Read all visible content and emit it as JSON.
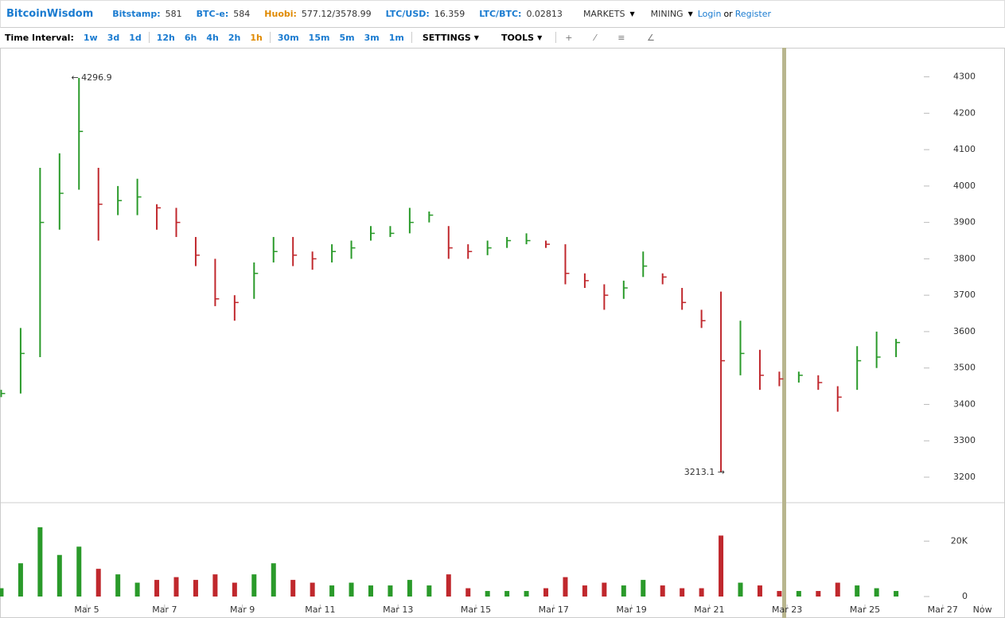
{
  "header": {
    "logo": "BitcoinWisdom",
    "tickers": [
      {
        "label": "Bitstamp:",
        "value": "581"
      },
      {
        "label": "BTC-e:",
        "value": "584"
      },
      {
        "label": "Huobi:",
        "value": "577.12/3578.99"
      },
      {
        "label": "LTC/USD:",
        "value": "16.359"
      },
      {
        "label": "LTC/BTC:",
        "value": "0.02813"
      }
    ],
    "menus": [
      "MARKETS",
      "MINING"
    ],
    "login": "Login",
    "or": "or",
    "register": "Register"
  },
  "toolbar": {
    "label": "Time Interval:",
    "intervals": [
      "1w",
      "3d",
      "1d",
      "12h",
      "6h",
      "4h",
      "2h",
      "1h",
      "30m",
      "15m",
      "5m",
      "3m",
      "1m"
    ],
    "active": "1h",
    "settings": "SETTINGS",
    "tools": "TOOLS"
  },
  "chart_data": {
    "type": "ohlc",
    "x": [
      2.8,
      3.3,
      3.8,
      4.3,
      4.8,
      5.3,
      5.8,
      6.3,
      6.8,
      7.3,
      7.8,
      8.3,
      8.8,
      9.3,
      9.8,
      10.3,
      10.8,
      11.3,
      11.8,
      12.3,
      12.8,
      13.3,
      13.8,
      14.3,
      14.8,
      15.3,
      15.8,
      16.3,
      16.8,
      17.3,
      17.8,
      18.3,
      18.8,
      19.3,
      19.8,
      20.3,
      20.8,
      21.3,
      21.8,
      22.3,
      22.8,
      23.3,
      23.8,
      24.3,
      24.8,
      25.3,
      25.8
    ],
    "close": [
      3430,
      3540,
      3900,
      3980,
      4150,
      3950,
      3960,
      3970,
      3940,
      3900,
      3810,
      3690,
      3680,
      3760,
      3820,
      3810,
      3800,
      3820,
      3830,
      3870,
      3870,
      3900,
      3920,
      3830,
      3820,
      3830,
      3850,
      3850,
      3840,
      3760,
      3740,
      3700,
      3720,
      3780,
      3750,
      3680,
      3630,
      3520,
      3540,
      3480,
      3470,
      3480,
      3460,
      3420,
      3520,
      3530,
      3570
    ],
    "high": [
      3440,
      3610,
      4050,
      4090,
      4296.9,
      4050,
      4000,
      4020,
      3950,
      3940,
      3860,
      3800,
      3700,
      3790,
      3860,
      3860,
      3820,
      3840,
      3850,
      3890,
      3890,
      3940,
      3930,
      3890,
      3840,
      3850,
      3860,
      3870,
      3850,
      3840,
      3760,
      3730,
      3740,
      3820,
      3760,
      3720,
      3660,
      3710,
      3630,
      3550,
      3490,
      3490,
      3480,
      3450,
      3560,
      3600,
      3580
    ],
    "low": [
      3420,
      3430,
      3530,
      3880,
      3990,
      3850,
      3920,
      3920,
      3880,
      3860,
      3780,
      3670,
      3630,
      3690,
      3790,
      3780,
      3770,
      3790,
      3800,
      3850,
      3860,
      3870,
      3900,
      3800,
      3800,
      3810,
      3830,
      3840,
      3830,
      3730,
      3720,
      3660,
      3690,
      3750,
      3730,
      3660,
      3610,
      3213.1,
      3480,
      3440,
      3450,
      3460,
      3440,
      3380,
      3440,
      3500,
      3530
    ],
    "volume": [
      3000,
      12000,
      25000,
      15000,
      18000,
      10000,
      8000,
      5000,
      6000,
      7000,
      6000,
      8000,
      5000,
      8000,
      12000,
      6000,
      5000,
      4000,
      5000,
      4000,
      4000,
      6000,
      4000,
      8000,
      3000,
      2000,
      2000,
      2000,
      3000,
      7000,
      4000,
      5000,
      4000,
      6000,
      4000,
      3000,
      3000,
      22000,
      5000,
      4000,
      2000,
      2000,
      2000,
      5000,
      4000,
      3000,
      2000
    ],
    "up_color": "#2a9a2a",
    "down_color": "#c0282d",
    "ylim": [
      3130,
      4380
    ],
    "yticks": [
      3200,
      3300,
      3400,
      3500,
      3600,
      3700,
      3800,
      3900,
      4000,
      4100,
      4200,
      4300
    ],
    "volume_lim": [
      0,
      31000
    ],
    "volume_ticks": [
      0,
      {
        "value": 20000,
        "label": "20K"
      }
    ],
    "xlim": [
      2.77,
      28.6
    ],
    "xticks": [
      {
        "value": 5,
        "label": "Mar 5"
      },
      {
        "value": 7,
        "label": "Mar 7"
      },
      {
        "value": 9,
        "label": "Mar 9"
      },
      {
        "value": 11,
        "label": "Mar 11"
      },
      {
        "value": 13,
        "label": "Mar 13"
      },
      {
        "value": 15,
        "label": "Mar 15"
      },
      {
        "value": 17,
        "label": "Mar 17"
      },
      {
        "value": 19,
        "label": "Mar 19"
      },
      {
        "value": 21,
        "label": "Mar 21"
      },
      {
        "value": 23,
        "label": "Mar 23"
      },
      {
        "value": 25,
        "label": "Mar 25"
      },
      {
        "value": 27,
        "label": "Mar 27"
      },
      {
        "value": 28.02,
        "label": "Now"
      }
    ],
    "annotations": [
      {
        "x": 4.6,
        "value": 4296.9,
        "label": "← 4296.9",
        "anchor": "start"
      },
      {
        "x": 21.4,
        "value": 3213.1,
        "label": "3213.1 →",
        "anchor": "end"
      }
    ]
  }
}
